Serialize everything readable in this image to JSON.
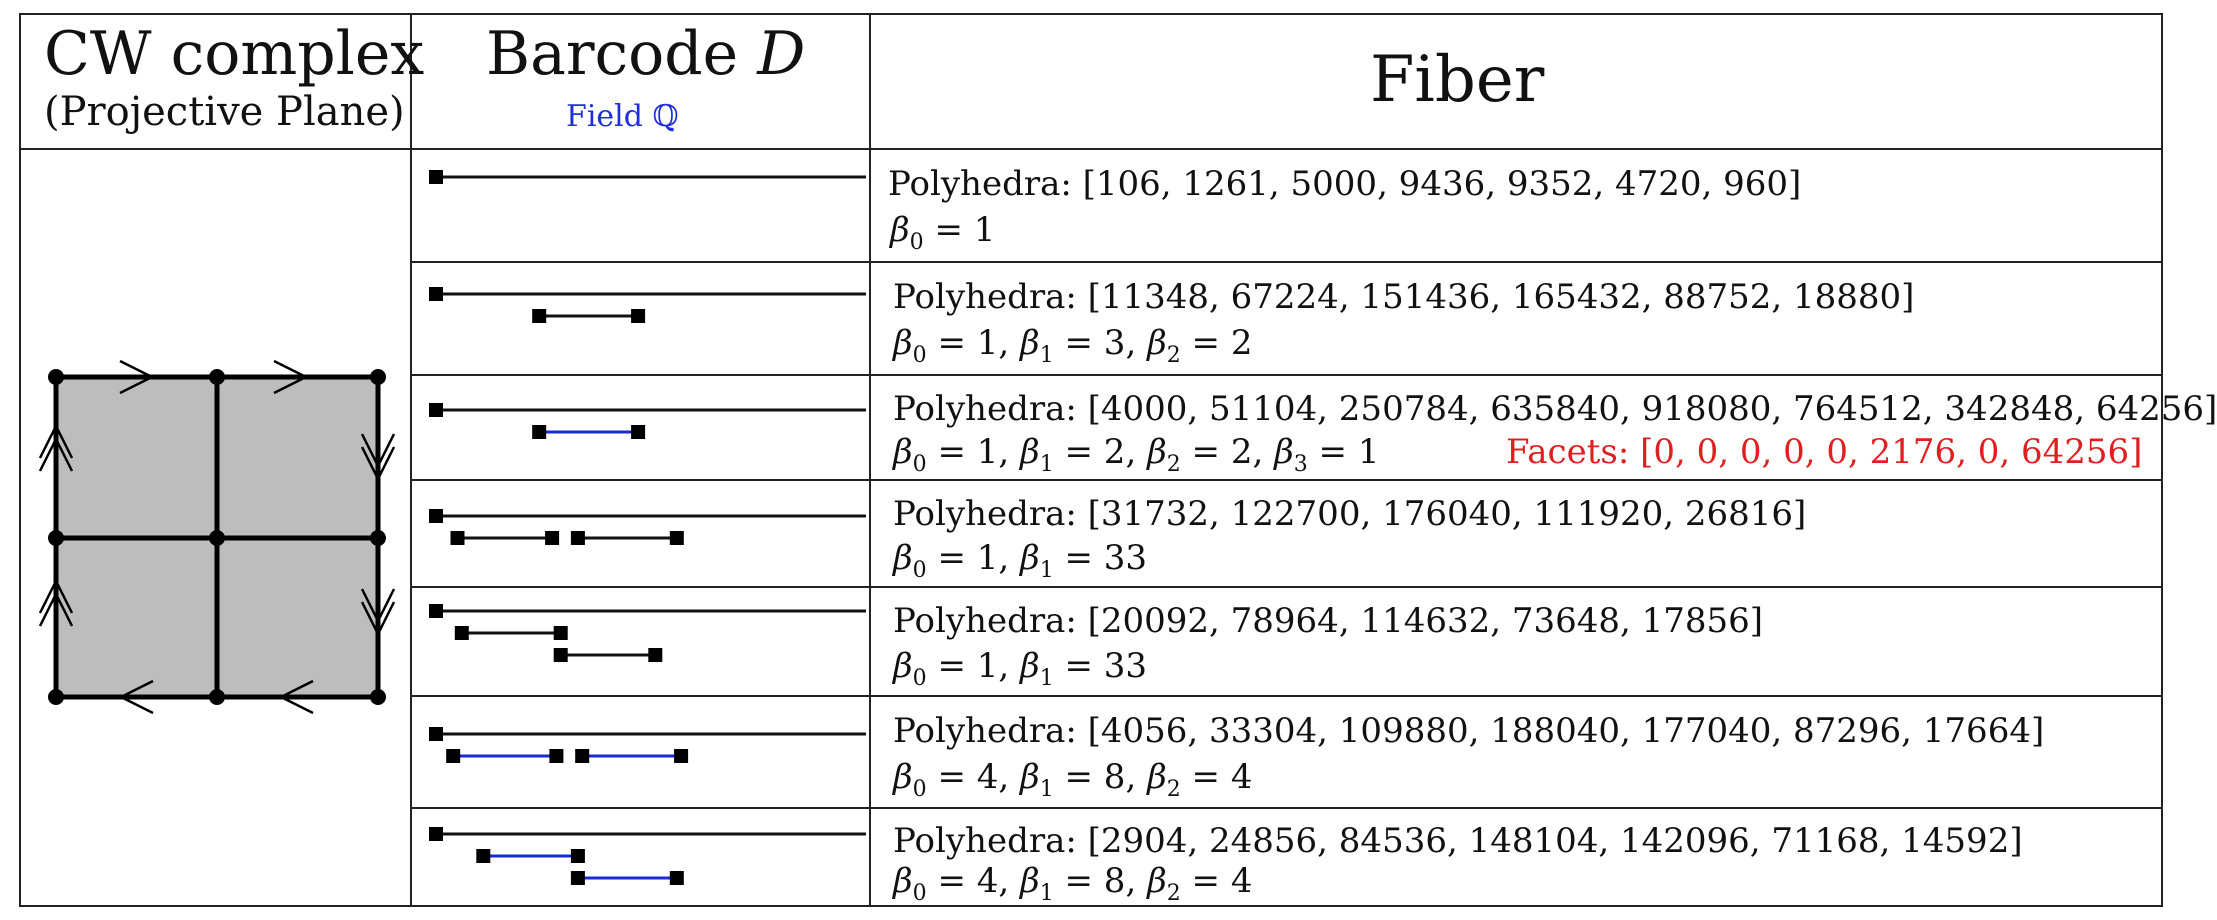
{
  "header": {
    "col1_title": "CW complex",
    "col1_subtitle": "(Projective Plane)",
    "col2_title_prefix": "Barcode",
    "col2_title_var": "D",
    "col2_field": "Field ℚ",
    "col3_title": "Fiber"
  },
  "colors": {
    "black_bar": "#111111",
    "blue_bar": "#1a2ad6",
    "facets_red": "#e02020",
    "field_blue": "#2030d8",
    "square_fill": "#bdbdbd"
  },
  "rows": [
    {
      "polyhedra_label": "Polyhedra: [106, 1261, 5000, 9436, 9352, 4720, 960]",
      "betti": [
        {
          "i": "0",
          "v": "1"
        }
      ],
      "facets": "",
      "bars": [
        {
          "start": 0,
          "end": 1,
          "color": "black",
          "infinite": true
        }
      ]
    },
    {
      "polyhedra_label": "Polyhedra: [11348, 67224, 151436, 165432, 88752, 18880]",
      "betti": [
        {
          "i": "0",
          "v": "1"
        },
        {
          "i": "1",
          "v": "3"
        },
        {
          "i": "2",
          "v": "2"
        }
      ],
      "facets": "",
      "bars": [
        {
          "start": 0,
          "end": 1,
          "color": "black",
          "infinite": true
        },
        {
          "start": 0.24,
          "end": 0.47,
          "color": "black",
          "infinite": false
        }
      ]
    },
    {
      "polyhedra_label": "Polyhedra: [4000, 51104, 250784, 635840, 918080, 764512, 342848, 64256]",
      "betti": [
        {
          "i": "0",
          "v": "1"
        },
        {
          "i": "1",
          "v": "2"
        },
        {
          "i": "2",
          "v": "2"
        },
        {
          "i": "3",
          "v": "1"
        }
      ],
      "facets": "Facets: [0, 0, 0, 0, 0, 2176, 0, 64256]",
      "bars": [
        {
          "start": 0,
          "end": 1,
          "color": "black",
          "infinite": true
        },
        {
          "start": 0.24,
          "end": 0.47,
          "color": "blue",
          "infinite": false
        }
      ]
    },
    {
      "polyhedra_label": "Polyhedra: [31732, 122700, 176040, 111920, 26816]",
      "betti": [
        {
          "i": "0",
          "v": "1"
        },
        {
          "i": "1",
          "v": "33"
        }
      ],
      "facets": "",
      "bars": [
        {
          "start": 0,
          "end": 1,
          "color": "black",
          "infinite": true
        },
        {
          "start": 0.05,
          "end": 0.27,
          "color": "black",
          "infinite": false
        },
        {
          "start": 0.33,
          "end": 0.56,
          "color": "black",
          "infinite": false
        }
      ]
    },
    {
      "polyhedra_label": "Polyhedra: [20092, 78964, 114632, 73648, 17856]",
      "betti": [
        {
          "i": "0",
          "v": "1"
        },
        {
          "i": "1",
          "v": "33"
        }
      ],
      "facets": "",
      "bars": [
        {
          "start": 0,
          "end": 1,
          "color": "black",
          "infinite": true
        },
        {
          "start": 0.06,
          "end": 0.29,
          "color": "black",
          "infinite": false
        },
        {
          "start": 0.29,
          "end": 0.51,
          "color": "black",
          "infinite": false
        }
      ]
    },
    {
      "polyhedra_label": "Polyhedra: [4056, 33304, 109880, 188040, 177040, 87296, 17664]",
      "betti": [
        {
          "i": "0",
          "v": "4"
        },
        {
          "i": "1",
          "v": "8"
        },
        {
          "i": "2",
          "v": "4"
        }
      ],
      "facets": "",
      "bars": [
        {
          "start": 0,
          "end": 1,
          "color": "black",
          "infinite": true
        },
        {
          "start": 0.04,
          "end": 0.28,
          "color": "blue",
          "infinite": false
        },
        {
          "start": 0.34,
          "end": 0.57,
          "color": "blue",
          "infinite": false
        }
      ]
    },
    {
      "polyhedra_label": "Polyhedra: [2904, 24856, 84536, 148104, 142096, 71168, 14592]",
      "betti": [
        {
          "i": "0",
          "v": "4"
        },
        {
          "i": "1",
          "v": "8"
        },
        {
          "i": "2",
          "v": "4"
        }
      ],
      "facets": "",
      "bars": [
        {
          "start": 0,
          "end": 1,
          "color": "black",
          "infinite": true
        },
        {
          "start": 0.11,
          "end": 0.33,
          "color": "blue",
          "infinite": false
        },
        {
          "start": 0.33,
          "end": 0.56,
          "color": "blue",
          "infinite": false
        }
      ]
    }
  ]
}
